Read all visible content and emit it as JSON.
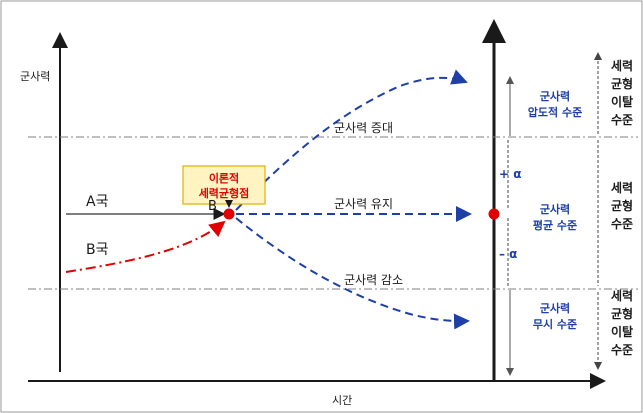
{
  "diagram": {
    "y_axis_label": "군사력",
    "x_axis_label": "시간",
    "nation_a": "A국",
    "nation_b": "B국",
    "point_label": "B",
    "callout": [
      "이론적",
      "세력균형점"
    ],
    "path_labels": {
      "increase": "군사력 증대",
      "maintain": "군사력 유지",
      "decrease": "군사력 감소"
    },
    "alpha_plus": "+ α",
    "alpha_minus": "– α",
    "levels": {
      "dominant": [
        "군사력",
        "압도적 수준"
      ],
      "average": [
        "군사력",
        "평균 수준"
      ],
      "negligible": [
        "군사력",
        "무시 수준"
      ]
    },
    "zones": {
      "top": [
        "세력",
        "균형",
        "이탈",
        "수준"
      ],
      "middle": [
        "세력",
        "균형",
        "수준"
      ],
      "bottom": [
        "세력",
        "균형",
        "이탈",
        "수준"
      ]
    },
    "colors": {
      "blue": "#1f3fa8",
      "red": "#e00000",
      "callout_fill": "#fff4c2",
      "callout_border": "#e0b000"
    }
  }
}
